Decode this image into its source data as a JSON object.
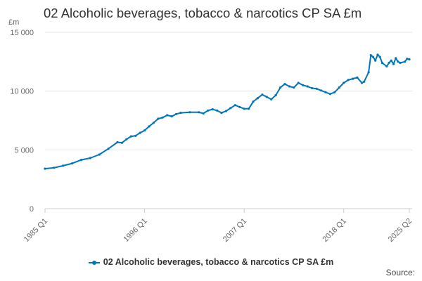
{
  "chart_title": "02 Alcoholic beverages, tobacco & narcotics CP SA £m",
  "unit_label": "£m",
  "source_label": "Source:",
  "chart_data": {
    "type": "line",
    "title": "02 Alcoholic beverages, tobacco & narcotics CP SA £m",
    "ylabel": "£m",
    "ylim": [
      0,
      15000
    ],
    "y_ticks": [
      0,
      5000,
      10000,
      15000
    ],
    "y_tick_labels": [
      "0",
      "5 000",
      "10 000",
      "15 000"
    ],
    "x_ticks": [
      "1985 Q1",
      "1996 Q1",
      "2007 Q1",
      "2018 Q1",
      "2025 Q2"
    ],
    "grid": true,
    "legend_position": "bottom",
    "series": [
      {
        "name": "02 Alcoholic beverages, tobacco & narcotics CP SA £m",
        "color": "#0076b8",
        "points": [
          [
            "1985 Q1",
            3400
          ],
          [
            "1986 Q1",
            3480
          ],
          [
            "1987 Q1",
            3650
          ],
          [
            "1988 Q1",
            3850
          ],
          [
            "1989 Q1",
            4150
          ],
          [
            "1990 Q1",
            4300
          ],
          [
            "1991 Q1",
            4600
          ],
          [
            "1992 Q1",
            5100
          ],
          [
            "1993 Q1",
            5650
          ],
          [
            "1993 Q3",
            5600
          ],
          [
            "1994 Q1",
            5900
          ],
          [
            "1994 Q3",
            6150
          ],
          [
            "1995 Q1",
            6200
          ],
          [
            "1995 Q3",
            6450
          ],
          [
            "1996 Q1",
            6650
          ],
          [
            "1996 Q3",
            7000
          ],
          [
            "1997 Q1",
            7300
          ],
          [
            "1997 Q3",
            7650
          ],
          [
            "1998 Q1",
            7750
          ],
          [
            "1998 Q3",
            7950
          ],
          [
            "1999 Q1",
            7850
          ],
          [
            "1999 Q3",
            8050
          ],
          [
            "2000 Q1",
            8150
          ],
          [
            "2001 Q1",
            8200
          ],
          [
            "2002 Q1",
            8200
          ],
          [
            "2002 Q3",
            8100
          ],
          [
            "2003 Q1",
            8350
          ],
          [
            "2003 Q3",
            8450
          ],
          [
            "2004 Q1",
            8350
          ],
          [
            "2004 Q3",
            8150
          ],
          [
            "2005 Q1",
            8300
          ],
          [
            "2005 Q3",
            8550
          ],
          [
            "2006 Q1",
            8800
          ],
          [
            "2006 Q3",
            8650
          ],
          [
            "2007 Q1",
            8500
          ],
          [
            "2007 Q3",
            8500
          ],
          [
            "2008 Q1",
            9100
          ],
          [
            "2008 Q3",
            9400
          ],
          [
            "2009 Q1",
            9700
          ],
          [
            "2009 Q3",
            9500
          ],
          [
            "2010 Q1",
            9300
          ],
          [
            "2010 Q3",
            9650
          ],
          [
            "2011 Q1",
            10300
          ],
          [
            "2011 Q3",
            10600
          ],
          [
            "2012 Q1",
            10400
          ],
          [
            "2012 Q3",
            10300
          ],
          [
            "2013 Q1",
            10700
          ],
          [
            "2013 Q3",
            10500
          ],
          [
            "2014 Q1",
            10400
          ],
          [
            "2014 Q3",
            10250
          ],
          [
            "2015 Q1",
            10200
          ],
          [
            "2015 Q3",
            10050
          ],
          [
            "2016 Q1",
            9900
          ],
          [
            "2016 Q3",
            9750
          ],
          [
            "2017 Q1",
            9900
          ],
          [
            "2017 Q3",
            10300
          ],
          [
            "2018 Q1",
            10700
          ],
          [
            "2018 Q3",
            10950
          ],
          [
            "2019 Q1",
            11050
          ],
          [
            "2019 Q3",
            11150
          ],
          [
            "2020 Q1",
            10700
          ],
          [
            "2020 Q2",
            10800
          ],
          [
            "2020 Q4",
            11600
          ],
          [
            "2021 Q1",
            13050
          ],
          [
            "2021 Q2",
            12900
          ],
          [
            "2021 Q3",
            12600
          ],
          [
            "2021 Q4",
            13100
          ],
          [
            "2022 Q1",
            12900
          ],
          [
            "2022 Q2",
            12400
          ],
          [
            "2022 Q4",
            12100
          ],
          [
            "2023 Q1",
            12400
          ],
          [
            "2023 Q2",
            12600
          ],
          [
            "2023 Q3",
            12300
          ],
          [
            "2023 Q4",
            12800
          ],
          [
            "2024 Q1",
            12500
          ],
          [
            "2024 Q2",
            12400
          ],
          [
            "2024 Q4",
            12500
          ],
          [
            "2025 Q1",
            12750
          ],
          [
            "2025 Q2",
            12700
          ]
        ]
      }
    ]
  }
}
